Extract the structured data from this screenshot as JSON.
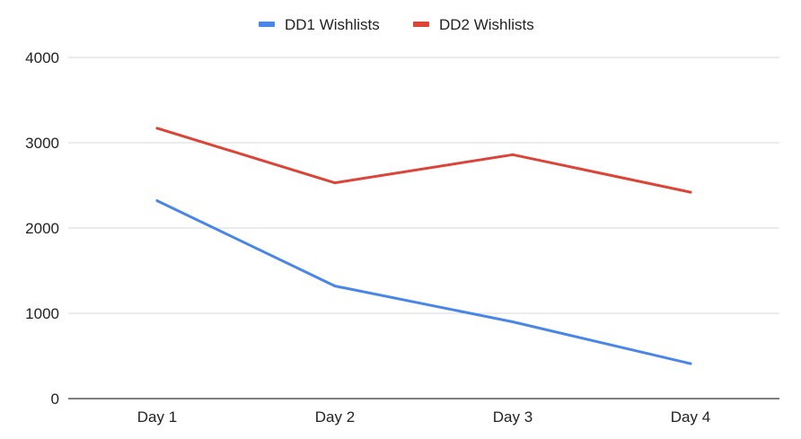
{
  "chart_data": {
    "type": "line",
    "title": "",
    "xlabel": "",
    "ylabel": "",
    "categories": [
      "Day 1",
      "Day 2",
      "Day 3",
      "Day 4"
    ],
    "series": [
      {
        "name": "DD1 Wishlists",
        "color": "#4a86e8",
        "values": [
          2320,
          1320,
          900,
          410
        ]
      },
      {
        "name": "DD2 Wishlists",
        "color": "#dc4437",
        "values": [
          3170,
          2530,
          2860,
          2420
        ]
      }
    ],
    "ylim": [
      0,
      4000
    ],
    "yticks": [
      "0",
      "1000",
      "2000",
      "3000",
      "4000"
    ],
    "ytick_values": [
      0,
      1000,
      2000,
      3000,
      4000
    ],
    "grid": true,
    "legend_position": "top-center"
  }
}
